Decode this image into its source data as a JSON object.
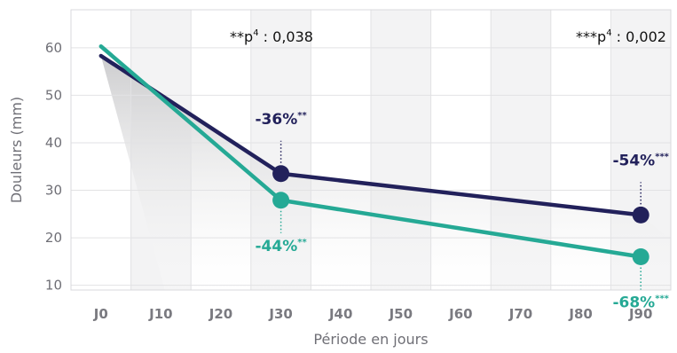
{
  "chart_data": {
    "type": "line",
    "title": "",
    "xlabel": "Période en jours",
    "ylabel": "Douleurs (mm)",
    "categories": [
      "J0",
      "J10",
      "J20",
      "J30",
      "J40",
      "J50",
      "J60",
      "J70",
      "J80",
      "J90"
    ],
    "y_ticks": [
      10,
      20,
      30,
      40,
      50,
      60
    ],
    "ylim": [
      9,
      68
    ],
    "grid": true,
    "series": [
      {
        "color": "#22215b",
        "points": [
          {
            "x": "J0",
            "y": 58.3
          },
          {
            "x": "J30",
            "y": 33.5
          },
          {
            "x": "J90",
            "y": 24.8
          }
        ],
        "markers": [
          "J30",
          "J90"
        ]
      },
      {
        "color": "#25a995",
        "points": [
          {
            "x": "J0",
            "y": 60.3
          },
          {
            "x": "J30",
            "y": 27.9
          },
          {
            "x": "J90",
            "y": 16.0
          }
        ],
        "markers": [
          "J30",
          "J90"
        ]
      }
    ],
    "annotations": [
      {
        "x": "J30",
        "series": 0,
        "position": "above",
        "text": "-36%",
        "sup": "**"
      },
      {
        "x": "J90",
        "series": 0,
        "position": "above",
        "text": "-54%",
        "sup": "***"
      },
      {
        "x": "J30",
        "series": 1,
        "position": "below",
        "text": "-44%",
        "sup": "**"
      },
      {
        "x": "J90",
        "series": 1,
        "position": "below",
        "text": "-68%",
        "sup": "***"
      }
    ],
    "pvalues": [
      {
        "prefix": "**p",
        "sup": "4",
        "value": " : 0,038"
      },
      {
        "prefix": "***p",
        "sup": "4",
        "value": " : 0,002"
      }
    ]
  }
}
